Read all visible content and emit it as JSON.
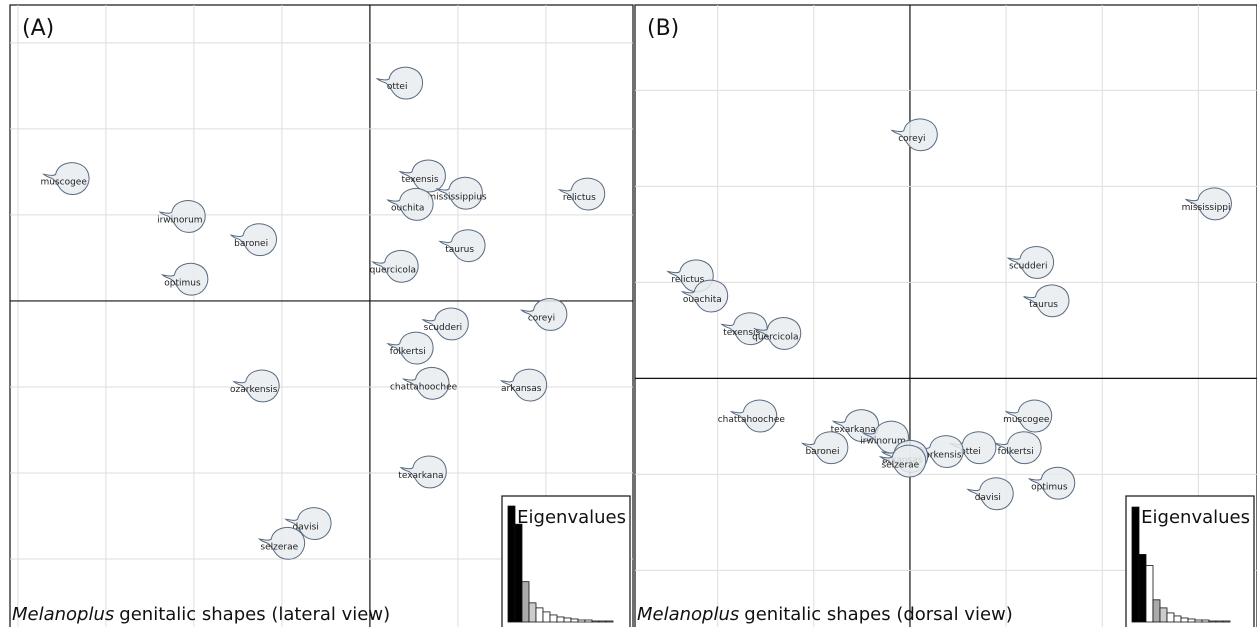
{
  "chart_data": [
    {
      "type": "scatter",
      "panel": "(A)",
      "title_italic": "Melanoplus",
      "title": "genitalic shapes (lateral view)",
      "xlim": [
        -4.09,
        2.99
      ],
      "ylim": [
        -3.79,
        3.44
      ],
      "xticks": [
        -4,
        -3,
        -2,
        -1,
        0,
        1,
        2
      ],
      "yticks": [
        -3,
        -2,
        -1,
        0,
        1,
        2,
        3
      ],
      "grid": true,
      "labels": [
        "ottei",
        "muscogee",
        "irwinorum",
        "baronei",
        "optimus",
        "texensis",
        "mississippius",
        "ouchita",
        "relictus",
        "taurus",
        "quercicola",
        "coreyi",
        "scudderi",
        "folkertsi",
        "chattahoochee",
        "arkansas",
        "ozarkensis",
        "texarkana",
        "davisi",
        "selzerae"
      ],
      "x": [
        0.31,
        -3.48,
        -2.16,
        -1.35,
        -2.13,
        0.57,
        0.99,
        0.43,
        2.38,
        1.02,
        0.26,
        1.95,
        0.83,
        0.43,
        0.61,
        1.72,
        -1.32,
        0.58,
        -0.73,
        -1.03
      ],
      "y": [
        2.49,
        1.38,
        0.94,
        0.67,
        0.21,
        1.41,
        1.21,
        1.08,
        1.2,
        0.6,
        0.36,
        -0.2,
        -0.31,
        -0.59,
        -1.0,
        -1.02,
        -1.03,
        -2.03,
        -2.63,
        -2.86
      ],
      "inset": {
        "type": "bar",
        "title": "Eigenvalues",
        "ylim": [
          0,
          120
        ],
        "values": [
          115,
          97,
          40,
          19,
          14,
          10,
          7,
          5,
          4,
          3,
          2,
          2,
          1,
          1,
          1
        ],
        "colors": [
          "#000000",
          "#000000",
          "#aaaaaa",
          "#cccccc",
          "#ffffff",
          "#ffffff",
          "#ffffff",
          "#ffffff",
          "#ffffff",
          "#ffffff",
          "#ffffff",
          "#ffffff",
          "#ffffff",
          "#ffffff",
          "#ffffff"
        ]
      }
    },
    {
      "type": "scatter",
      "panel": "(B)",
      "title_italic": "Melanoplus",
      "title": "genitalic shapes (dorsal view)",
      "xlim": [
        -2.86,
        3.61
      ],
      "ylim": [
        -2.59,
        3.89
      ],
      "xticks": [
        -2,
        -1,
        0,
        1,
        2,
        3
      ],
      "yticks": [
        -2,
        -1,
        0,
        1,
        2,
        3
      ],
      "grid": true,
      "labels": [
        "coreyi",
        "mississippi",
        "scudderi",
        "taurus",
        "relictus",
        "ouachita",
        "texensis",
        "quercicola",
        "chattahoochee",
        "texarkana",
        "irwinorum",
        "baronei",
        "muscogee",
        "folkertsi",
        "ottei",
        "ozarkensis",
        "arkansas",
        "selzerae",
        "optimus",
        "davisi"
      ],
      "x": [
        0.02,
        3.08,
        1.23,
        1.39,
        -2.31,
        -2.16,
        -1.75,
        -1.4,
        -1.65,
        -0.59,
        -0.28,
        -0.91,
        1.21,
        1.1,
        0.63,
        0.29,
        -0.08,
        -0.1,
        1.45,
        0.81
      ],
      "y": [
        2.5,
        1.78,
        1.17,
        0.77,
        1.03,
        0.82,
        0.48,
        0.43,
        -0.43,
        -0.53,
        -0.65,
        -0.76,
        -0.43,
        -0.76,
        -0.76,
        -0.8,
        -0.85,
        -0.9,
        -1.13,
        -1.24
      ],
      "inset": {
        "type": "bar",
        "title": "Eigenvalues",
        "ylim": [
          0,
          120
        ],
        "values": [
          114,
          67,
          56,
          22,
          14,
          9,
          6,
          4,
          3,
          2,
          2,
          1,
          1,
          1
        ],
        "colors": [
          "#000000",
          "#000000",
          "#ffffff",
          "#aaaaaa",
          "#cccccc",
          "#ffffff",
          "#ffffff",
          "#ffffff",
          "#ffffff",
          "#ffffff",
          "#ffffff",
          "#ffffff",
          "#ffffff",
          "#ffffff"
        ]
      }
    }
  ]
}
